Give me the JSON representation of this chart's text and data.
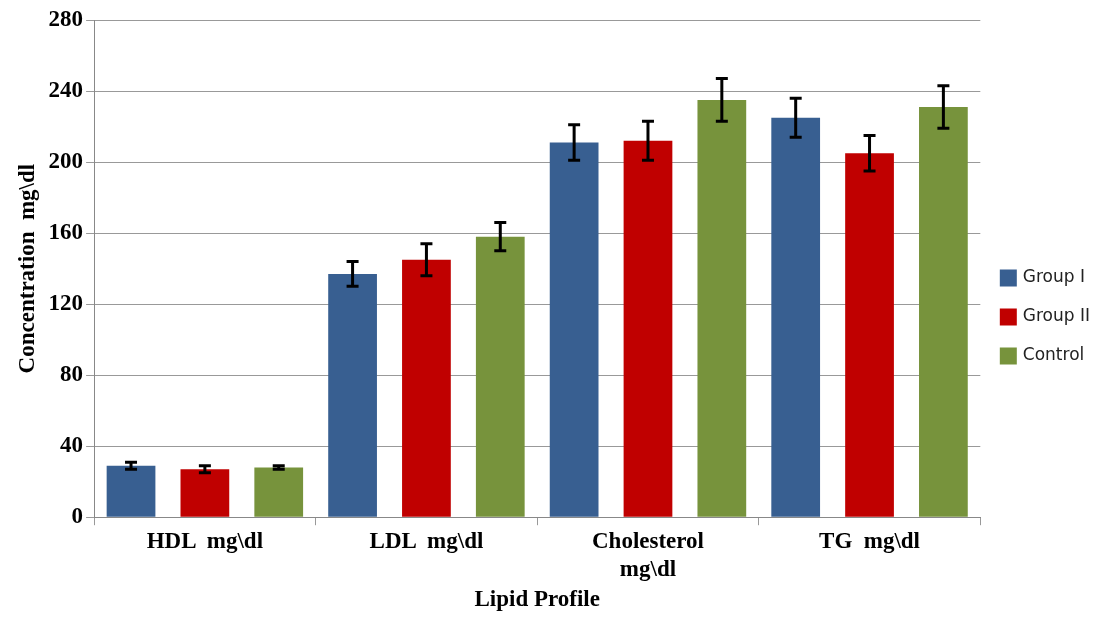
{
  "chart_data": {
    "type": "bar",
    "xlabel": "Lipid Profile",
    "ylabel": "Concentration  mg\\dl",
    "categories": [
      "HDL  mg\\dl",
      "LDL  mg\\dl",
      "Cholesterol mg\\dl",
      "TG  mg\\dl"
    ],
    "series": [
      {
        "name": "Group I",
        "color": "#385f91",
        "values": [
          29,
          137,
          211,
          225
        ],
        "errors": [
          2,
          7,
          10,
          11
        ]
      },
      {
        "name": "Group II",
        "color": "#c00000",
        "values": [
          27,
          145,
          212,
          205
        ],
        "errors": [
          2,
          9,
          11,
          10
        ]
      },
      {
        "name": "Control",
        "color": "#77933c",
        "values": [
          28,
          158,
          235,
          231
        ],
        "errors": [
          1,
          8,
          12,
          12
        ]
      }
    ],
    "ylim": [
      0,
      280
    ],
    "yticks": [
      0,
      40,
      80,
      120,
      160,
      200,
      240,
      280
    ],
    "grid": "y",
    "legend": "right"
  }
}
